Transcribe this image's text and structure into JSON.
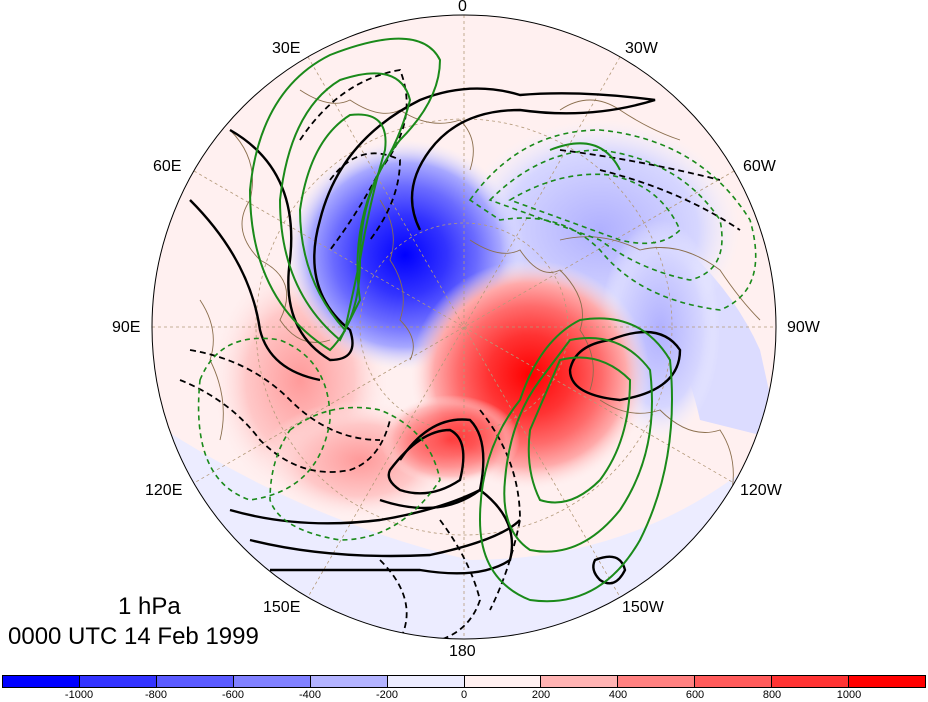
{
  "map": {
    "projection": "north-polar-stereographic",
    "longitude_labels": {
      "top": "0",
      "upper_left": "30E",
      "upper_right": "30W",
      "left_upper": "60E",
      "right_upper": "60W",
      "left": "90E",
      "right": "90W",
      "left_lower": "120E",
      "right_lower": "120W",
      "lower_left": "150E",
      "lower_right": "150W",
      "bottom": "180"
    },
    "contour_styles": {
      "solid_black": "#000000",
      "dashed_black": "#000000",
      "solid_green": "#1a8a1a",
      "dashed_green": "#1a8a1a",
      "coastline": "#8b6f4e"
    },
    "dominant_features": {
      "negative_center": "blue minimum near 45E-60E high latitudes",
      "positive_center": "red maximum near 120W-150W high latitudes"
    }
  },
  "annotation": {
    "level": "1 hPa",
    "time": "0000 UTC 14 Feb 1999"
  },
  "colorbar": {
    "colors": [
      "#0000ff",
      "#3333ff",
      "#5a5aff",
      "#8080ff",
      "#b3b3ff",
      "#ececff",
      "#fff0f0",
      "#ffb3b3",
      "#ff8080",
      "#ff5a5a",
      "#ff3333",
      "#ff0000"
    ],
    "ticks": [
      "-1000",
      "-800",
      "-600",
      "-400",
      "-200",
      "0",
      "200",
      "400",
      "600",
      "800",
      "1000"
    ]
  }
}
